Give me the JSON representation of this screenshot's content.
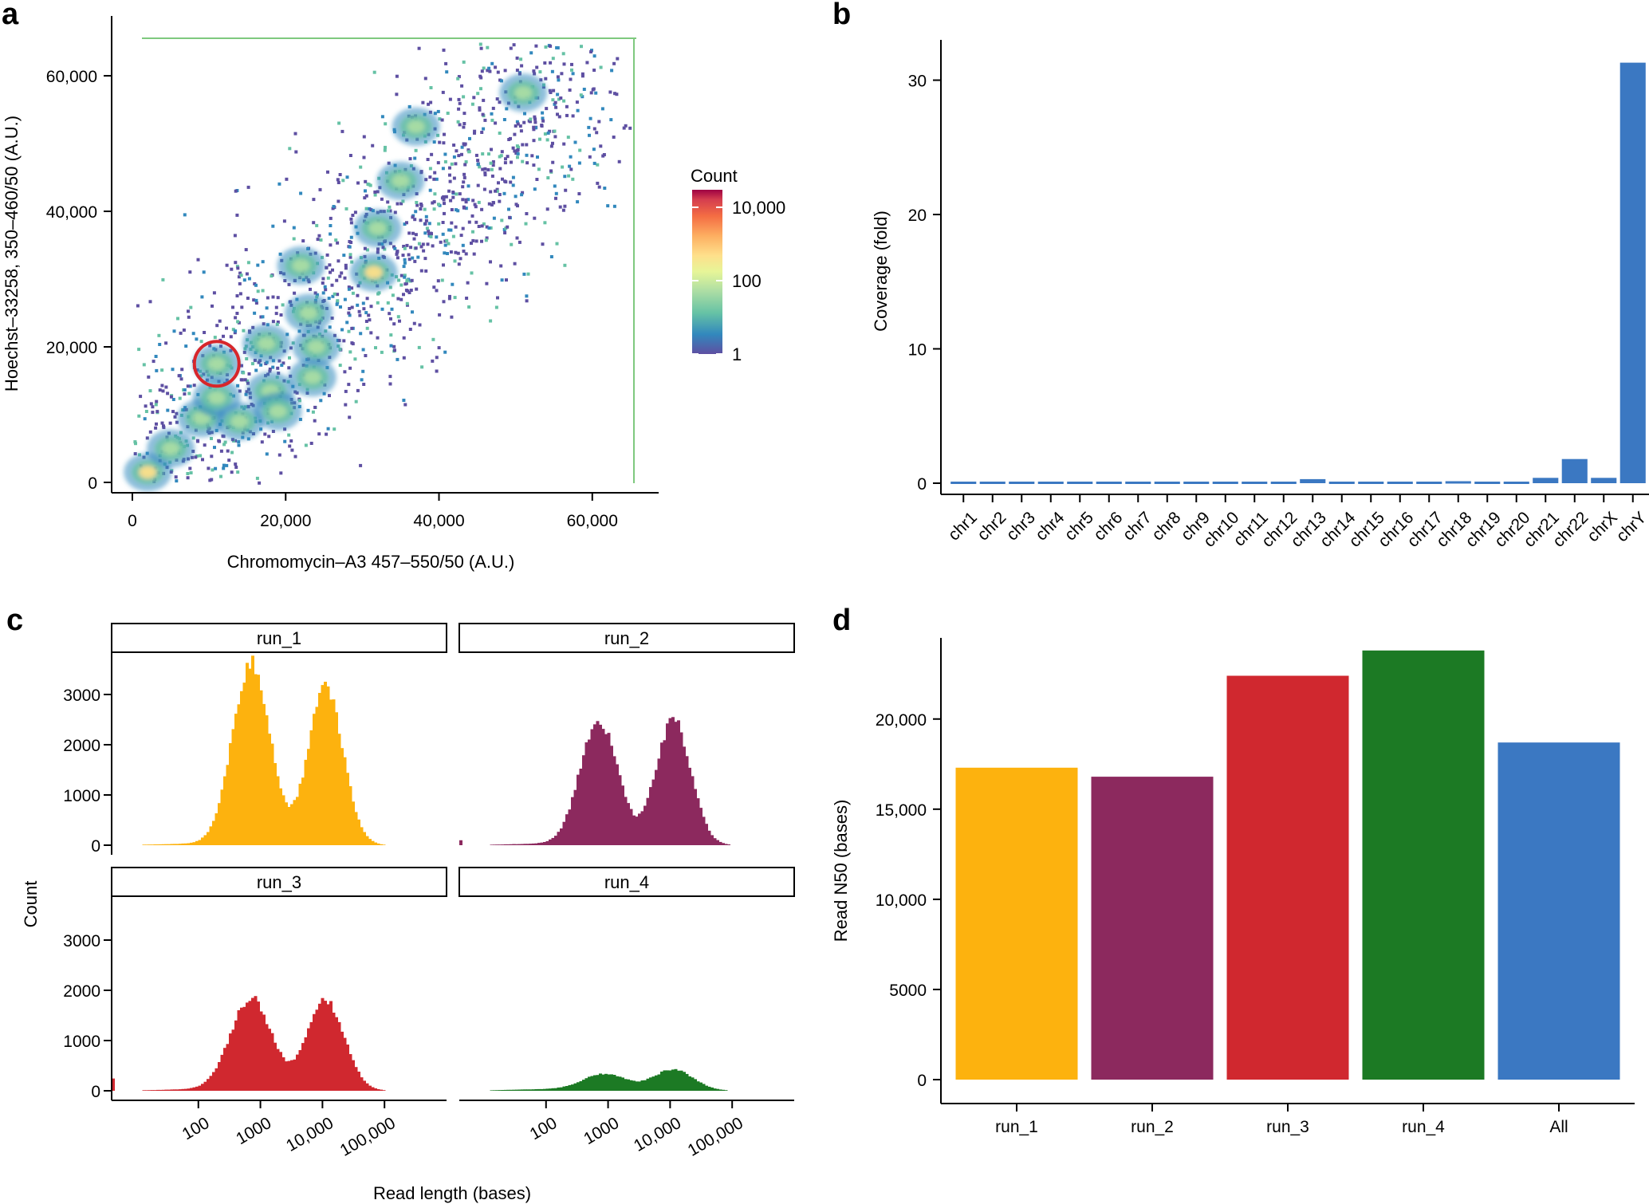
{
  "chart_data": [
    {
      "panel": "a",
      "type": "heatmap",
      "xlabel": "Chromomycin–A3 457–550/50 (A.U.)",
      "ylabel": "Hoechst–33258, 350–460/50 (A.U.)",
      "xlim": [
        0,
        65536
      ],
      "ylim": [
        0,
        65536
      ],
      "xticks": [
        0,
        20000,
        40000,
        60000
      ],
      "xtick_labels": [
        "0",
        "20,000",
        "40,000",
        "60,000"
      ],
      "yticks": [
        0,
        20000,
        40000,
        60000
      ],
      "ytick_labels": [
        "0",
        "20,000",
        "40,000",
        "60,000"
      ],
      "legend": {
        "title": "Count",
        "scale": "log10",
        "range": [
          1,
          30000
        ],
        "labels": [
          "10,000",
          "100",
          "1"
        ],
        "label_values": [
          10000,
          100,
          1
        ]
      },
      "clusters": [
        {
          "x": 2000,
          "y": 1500,
          "intensity": 0.9
        },
        {
          "x": 5000,
          "y": 5000,
          "intensity": 0.55
        },
        {
          "x": 9000,
          "y": 9500,
          "intensity": 0.5
        },
        {
          "x": 11000,
          "y": 12500,
          "intensity": 0.55
        },
        {
          "x": 11000,
          "y": 17500,
          "intensity": 0.6
        },
        {
          "x": 14000,
          "y": 9000,
          "intensity": 0.65
        },
        {
          "x": 17500,
          "y": 20500,
          "intensity": 0.6
        },
        {
          "x": 18000,
          "y": 13500,
          "intensity": 0.6
        },
        {
          "x": 19000,
          "y": 10500,
          "intensity": 0.55
        },
        {
          "x": 22000,
          "y": 32000,
          "intensity": 0.45
        },
        {
          "x": 23000,
          "y": 25000,
          "intensity": 0.55
        },
        {
          "x": 24000,
          "y": 20000,
          "intensity": 0.55
        },
        {
          "x": 23500,
          "y": 15500,
          "intensity": 0.6
        },
        {
          "x": 31500,
          "y": 31000,
          "intensity": 0.85
        },
        {
          "x": 32000,
          "y": 37500,
          "intensity": 0.6
        },
        {
          "x": 35000,
          "y": 44500,
          "intensity": 0.55
        },
        {
          "x": 37000,
          "y": 52500,
          "intensity": 0.5
        },
        {
          "x": 51000,
          "y": 57500,
          "intensity": 0.5
        }
      ],
      "highlight_circle": {
        "x": 11000,
        "y": 17500,
        "color": "#d7262b"
      }
    },
    {
      "panel": "b",
      "type": "bar",
      "xlabel": "",
      "ylabel": "Coverage (fold)",
      "ylim": [
        0,
        33
      ],
      "yticks": [
        0,
        10,
        20,
        30
      ],
      "categories": [
        "chr1",
        "chr2",
        "chr3",
        "chr4",
        "chr5",
        "chr6",
        "chr7",
        "chr8",
        "chr9",
        "chr10",
        "chr11",
        "chr12",
        "chr13",
        "chr14",
        "chr15",
        "chr16",
        "chr17",
        "chr18",
        "chr19",
        "chr20",
        "chr21",
        "chr22",
        "chrX",
        "chrY"
      ],
      "values": [
        0.12,
        0.12,
        0.12,
        0.12,
        0.12,
        0.12,
        0.12,
        0.12,
        0.12,
        0.12,
        0.12,
        0.12,
        0.3,
        0.12,
        0.12,
        0.12,
        0.12,
        0.15,
        0.12,
        0.12,
        0.4,
        1.8,
        0.4,
        31.3
      ],
      "color": "#3b78c2"
    },
    {
      "panel": "c",
      "type": "bar",
      "subtype": "histogram",
      "xlabel": "Read length (bases)",
      "ylabel": "Count",
      "x_scale": "log10",
      "xlim": [
        4,
        1000000
      ],
      "xticks": [
        100,
        1000,
        10000,
        100000
      ],
      "xtick_labels": [
        "100",
        "1000",
        "10,000",
        "100,000"
      ],
      "ylim": [
        0,
        3700
      ],
      "yticks": [
        0,
        1000,
        2000,
        3000
      ],
      "series": [
        {
          "name": "run_1",
          "color": "#fdb20e",
          "peaks": [
            {
              "log10_x": 2.85,
              "height": 3600,
              "sd": 0.3
            },
            {
              "log10_x": 4.05,
              "height": 3150,
              "sd": 0.28
            }
          ],
          "spike": 0
        },
        {
          "name": "run_2",
          "color": "#8c295e",
          "peaks": [
            {
              "log10_x": 2.85,
              "height": 2480,
              "sd": 0.3
            },
            {
              "log10_x": 4.05,
              "height": 2480,
              "sd": 0.28
            }
          ],
          "spike": 100
        },
        {
          "name": "run_3",
          "color": "#d0282f",
          "peaks": [
            {
              "log10_x": 2.85,
              "height": 1830,
              "sd": 0.33
            },
            {
              "log10_x": 4.05,
              "height": 1780,
              "sd": 0.3
            }
          ],
          "spike": 250
        },
        {
          "name": "run_4",
          "color": "#1c7a24",
          "peaks": [
            {
              "log10_x": 2.95,
              "height": 330,
              "sd": 0.35
            },
            {
              "log10_x": 4.05,
              "height": 420,
              "sd": 0.32
            }
          ],
          "spike": 0
        }
      ]
    },
    {
      "panel": "d",
      "type": "bar",
      "xlabel": "",
      "ylabel": "Read N50 (bases)",
      "ylim": [
        0,
        24500
      ],
      "yticks": [
        0,
        5000,
        10000,
        15000,
        20000
      ],
      "ytick_labels": [
        "0",
        "5000",
        "10,000",
        "15,000",
        "20,000"
      ],
      "categories": [
        "run_1",
        "run_2",
        "run_3",
        "run_4",
        "All"
      ],
      "values": [
        17300,
        16800,
        22400,
        23800,
        18700
      ],
      "colors": [
        "#fdb20e",
        "#8c295e",
        "#d0282f",
        "#1c7a24",
        "#3b78c2"
      ]
    }
  ],
  "panel_labels": {
    "a": "a",
    "b": "b",
    "c": "c",
    "d": "d"
  }
}
